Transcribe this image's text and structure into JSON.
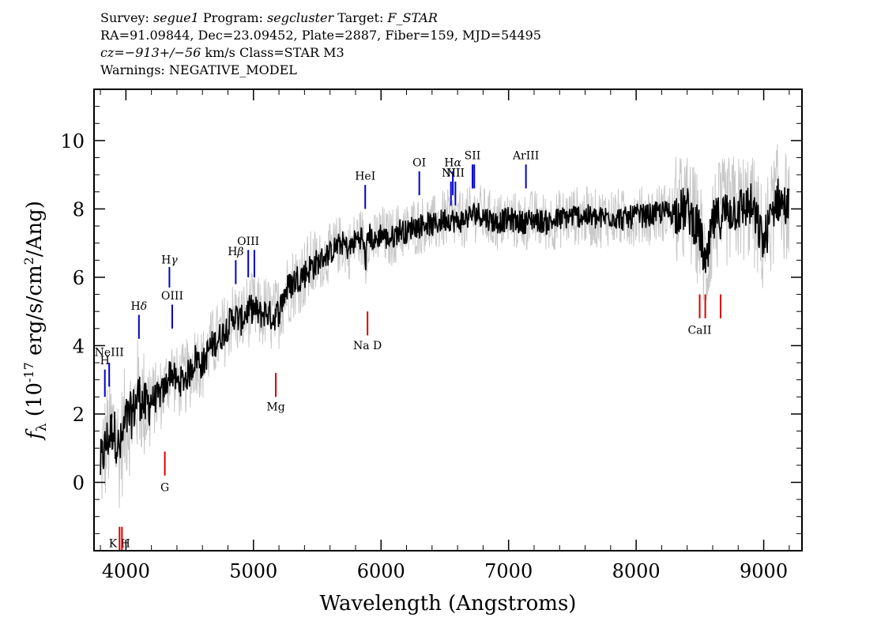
{
  "header": {
    "line1": {
      "survey_label": "Survey: ",
      "survey": "segue1",
      "program_label": " Program: ",
      "program": "segcluster",
      "target_label": " Target: ",
      "target": "F_STAR"
    },
    "line2": "RA=91.09844, Dec=23.09452, Plate=2887, Fiber=159, MJD=54495",
    "line3": {
      "cz": "cz=−913+/−56",
      "rest": " km/s Class=STAR M3"
    },
    "line4": "Warnings: NEGATIVE_MODEL"
  },
  "colors": {
    "flux": "#000000",
    "error": "#c8c8c8",
    "emission": "#0000cc",
    "absorption": "#dd0000"
  },
  "chart_data": {
    "type": "line",
    "xlabel": "Wavelength (Angstroms)",
    "ylabel": "f_λ (10^-17 erg/s/cm^2/Ang)",
    "xlim": [
      3750,
      9300
    ],
    "ylim": [
      -2.0,
      11.5
    ],
    "xticks": [
      4000,
      5000,
      6000,
      7000,
      8000,
      9000
    ],
    "yticks": [
      0,
      2,
      4,
      6,
      8,
      10
    ],
    "grid": false,
    "series": [
      {
        "role": "flux",
        "x": [
          3800,
          3850,
          3900,
          3950,
          4000,
          4050,
          4100,
          4150,
          4200,
          4250,
          4300,
          4350,
          4400,
          4450,
          4500,
          4550,
          4600,
          4650,
          4700,
          4750,
          4800,
          4850,
          4900,
          4950,
          5000,
          5050,
          5100,
          5150,
          5200,
          5250,
          5300,
          5350,
          5400,
          5450,
          5500,
          5550,
          5600,
          5650,
          5700,
          5750,
          5800,
          5850,
          5880,
          5900,
          5950,
          6000,
          6050,
          6100,
          6150,
          6200,
          6250,
          6300,
          6350,
          6400,
          6450,
          6500,
          6550,
          6600,
          6650,
          6700,
          6750,
          6800,
          6900,
          7000,
          7100,
          7200,
          7300,
          7400,
          7500,
          7600,
          7700,
          7800,
          7900,
          8000,
          8100,
          8200,
          8300,
          8400,
          8500,
          8550,
          8600,
          8700,
          8800,
          8900,
          9000,
          9100,
          9200
        ],
        "y": [
          0.5,
          1.2,
          1.6,
          0.9,
          1.8,
          2.0,
          2.6,
          2.2,
          2.4,
          2.5,
          2.7,
          3.3,
          2.9,
          3.0,
          3.2,
          3.7,
          3.4,
          3.9,
          4.1,
          4.3,
          4.6,
          4.9,
          4.7,
          5.0,
          5.1,
          4.9,
          5.0,
          4.8,
          5.0,
          5.6,
          5.8,
          6.0,
          6.1,
          6.3,
          6.4,
          6.6,
          6.7,
          6.9,
          7.0,
          6.8,
          7.1,
          7.2,
          6.5,
          7.3,
          7.0,
          7.3,
          7.1,
          7.2,
          7.4,
          7.3,
          7.5,
          7.5,
          7.6,
          7.5,
          7.6,
          7.7,
          7.7,
          7.6,
          7.7,
          7.8,
          7.9,
          7.8,
          7.6,
          7.7,
          7.6,
          7.7,
          7.6,
          7.7,
          7.8,
          7.8,
          7.7,
          7.8,
          7.7,
          7.8,
          7.8,
          7.9,
          7.9,
          8.0,
          7.3,
          6.2,
          7.6,
          7.9,
          8.0,
          8.1,
          7.0,
          8.3,
          8.0
        ]
      }
    ],
    "lines": [
      {
        "label": "H",
        "x": 3835,
        "y": [
          2.5,
          3.3
        ],
        "kind": "emission",
        "label_y": 3.45
      },
      {
        "label": "NeIII",
        "x": 3869,
        "y": [
          2.8,
          3.5
        ],
        "kind": "emission",
        "label_y": 3.7
      },
      {
        "label": "Hδ",
        "x": 4102,
        "y": [
          4.2,
          4.9
        ],
        "kind": "emission",
        "label_y": 5.05
      },
      {
        "label": "Hγ",
        "x": 4341,
        "y": [
          5.7,
          6.3
        ],
        "kind": "emission",
        "label_y": 6.4
      },
      {
        "label": "OIII",
        "x": 4363,
        "y": [
          4.5,
          5.2
        ],
        "kind": "emission",
        "label_y": 5.35
      },
      {
        "label": "Hβ",
        "x": 4861,
        "y": [
          5.8,
          6.5
        ],
        "kind": "emission",
        "label_y": 6.65
      },
      {
        "label": "OIII",
        "x": 4959,
        "y": [
          6.0,
          6.8
        ],
        "kind": "emission",
        "label_y": 6.95
      },
      {
        "label": "",
        "x": 5007,
        "y": [
          6.0,
          6.8
        ],
        "kind": "emission",
        "label_y": 0
      },
      {
        "label": "HeI",
        "x": 5876,
        "y": [
          8.0,
          8.7
        ],
        "kind": "emission",
        "label_y": 8.85
      },
      {
        "label": "OI",
        "x": 6300,
        "y": [
          8.4,
          9.1
        ],
        "kind": "emission",
        "label_y": 9.25
      },
      {
        "label": "NII",
        "x": 6548,
        "y": [
          8.1,
          8.8
        ],
        "kind": "emission",
        "label_y": 8.95
      },
      {
        "label": "Hα",
        "x": 6563,
        "y": [
          8.4,
          9.1
        ],
        "kind": "emission",
        "label_y": 9.25
      },
      {
        "label": "NII",
        "x": 6583,
        "y": [
          8.1,
          8.8
        ],
        "kind": "emission",
        "label_y": 8.95
      },
      {
        "label": "SII",
        "x": 6717,
        "y": [
          8.6,
          9.3
        ],
        "kind": "emission",
        "label_y": 9.45
      },
      {
        "label": "",
        "x": 6731,
        "y": [
          8.6,
          9.3
        ],
        "kind": "emission",
        "label_y": 0
      },
      {
        "label": "ArIII",
        "x": 7136,
        "y": [
          8.6,
          9.3
        ],
        "kind": "emission",
        "label_y": 9.45
      },
      {
        "label": "K H",
        "x": 3950,
        "y": [
          -2.0,
          -1.3
        ],
        "kind": "absorption",
        "label_y": -1.9
      },
      {
        "label": "",
        "x": 3969,
        "y": [
          -2.0,
          -1.3
        ],
        "kind": "absorption",
        "label_y": 0
      },
      {
        "label": "G",
        "x": 4305,
        "y": [
          0.2,
          0.9
        ],
        "kind": "absorption",
        "label_y": -0.25
      },
      {
        "label": "Mg",
        "x": 5175,
        "y": [
          2.5,
          3.2
        ],
        "kind": "absorption",
        "label_y": 2.1
      },
      {
        "label": "Na  D",
        "x": 5894,
        "y": [
          4.3,
          5.0
        ],
        "kind": "absorption",
        "label_y": 3.9
      },
      {
        "label": "CaII",
        "x": 8498,
        "y": [
          4.8,
          5.5
        ],
        "kind": "absorption",
        "label_y": 4.35
      },
      {
        "label": "",
        "x": 8542,
        "y": [
          4.8,
          5.5
        ],
        "kind": "absorption",
        "label_y": 0
      },
      {
        "label": "",
        "x": 8662,
        "y": [
          4.8,
          5.5
        ],
        "kind": "absorption",
        "label_y": 0
      }
    ]
  }
}
